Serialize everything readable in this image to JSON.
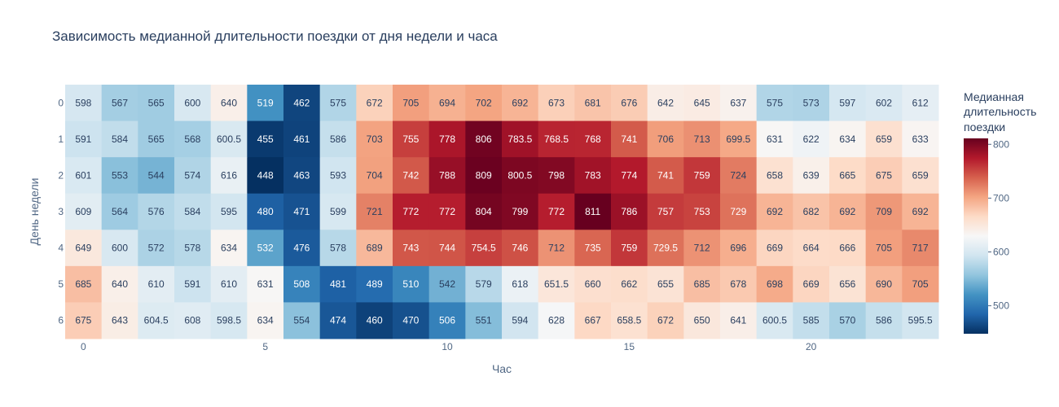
{
  "chart_data": {
    "type": "heatmap",
    "title": "Зависимость медианной длительности поездки от дня недели и часа",
    "xlabel": "Час",
    "ylabel": "День недели",
    "x": [
      0,
      1,
      2,
      3,
      4,
      5,
      6,
      7,
      8,
      9,
      10,
      11,
      12,
      13,
      14,
      15,
      16,
      17,
      18,
      19,
      20,
      21,
      22,
      23
    ],
    "y": [
      0,
      1,
      2,
      3,
      4,
      5,
      6
    ],
    "x_tick_labels": [
      "0",
      "5",
      "10",
      "15",
      "20"
    ],
    "y_tick_labels": [
      "0",
      "1",
      "2",
      "3",
      "4",
      "5",
      "6"
    ],
    "z": [
      [
        "598",
        "567",
        "565",
        "600",
        "640",
        "519",
        "462",
        "575",
        "672",
        "705",
        "694",
        "702",
        "692",
        "673",
        "681",
        "676",
        "642",
        "645",
        "637",
        "575",
        "573",
        "597",
        "602",
        "612"
      ],
      [
        "591",
        "584",
        "565",
        "568",
        "600.5",
        "455",
        "461",
        "586",
        "703",
        "755",
        "778",
        "806",
        "783.5",
        "768.5",
        "768",
        "741",
        "706",
        "713",
        "699.5",
        "631",
        "622",
        "634",
        "659",
        "633"
      ],
      [
        "601",
        "553",
        "544",
        "574",
        "616",
        "448",
        "463",
        "593",
        "704",
        "742",
        "788",
        "809",
        "800.5",
        "798",
        "783",
        "774",
        "741",
        "759",
        "724",
        "658",
        "639",
        "665",
        "675",
        "659"
      ],
      [
        "609",
        "564",
        "576",
        "584",
        "595",
        "480",
        "471",
        "599",
        "721",
        "772",
        "772",
        "804",
        "799",
        "772",
        "811",
        "786",
        "757",
        "753",
        "729",
        "692",
        "682",
        "692",
        "709",
        "692"
      ],
      [
        "649",
        "600",
        "572",
        "578",
        "634",
        "532",
        "476",
        "578",
        "689",
        "743",
        "744",
        "754.5",
        "746",
        "712",
        "735",
        "759",
        "729.5",
        "712",
        "696",
        "669",
        "664",
        "666",
        "705",
        "717"
      ],
      [
        "685",
        "640",
        "610",
        "591",
        "610",
        "631",
        "508",
        "481",
        "489",
        "510",
        "542",
        "579",
        "618",
        "651.5",
        "660",
        "662",
        "655",
        "685",
        "678",
        "698",
        "669",
        "656",
        "690",
        "705"
      ],
      [
        "675",
        "643",
        "604.5",
        "608",
        "598.5",
        "634",
        "554",
        "474",
        "460",
        "470",
        "506",
        "551",
        "594",
        "628",
        "667",
        "658.5",
        "672",
        "650",
        "641",
        "600.5",
        "585",
        "570",
        "586",
        "595.5"
      ]
    ],
    "zmin": 448,
    "zmax": 811,
    "colorscale": "RdBu_r",
    "colorscale_colors": [
      "#053061",
      "#2166ac",
      "#4393c3",
      "#92c5de",
      "#d1e5f0",
      "#f7f7f7",
      "#fddbc7",
      "#f4a582",
      "#d6604d",
      "#b2182b",
      "#67001f"
    ],
    "colorbar": {
      "title": [
        "Медианная",
        "длительность",
        "поездки"
      ],
      "ticks": [
        500,
        600,
        700,
        800
      ],
      "tick_labels": [
        "500",
        "600",
        "700",
        "800"
      ]
    }
  }
}
